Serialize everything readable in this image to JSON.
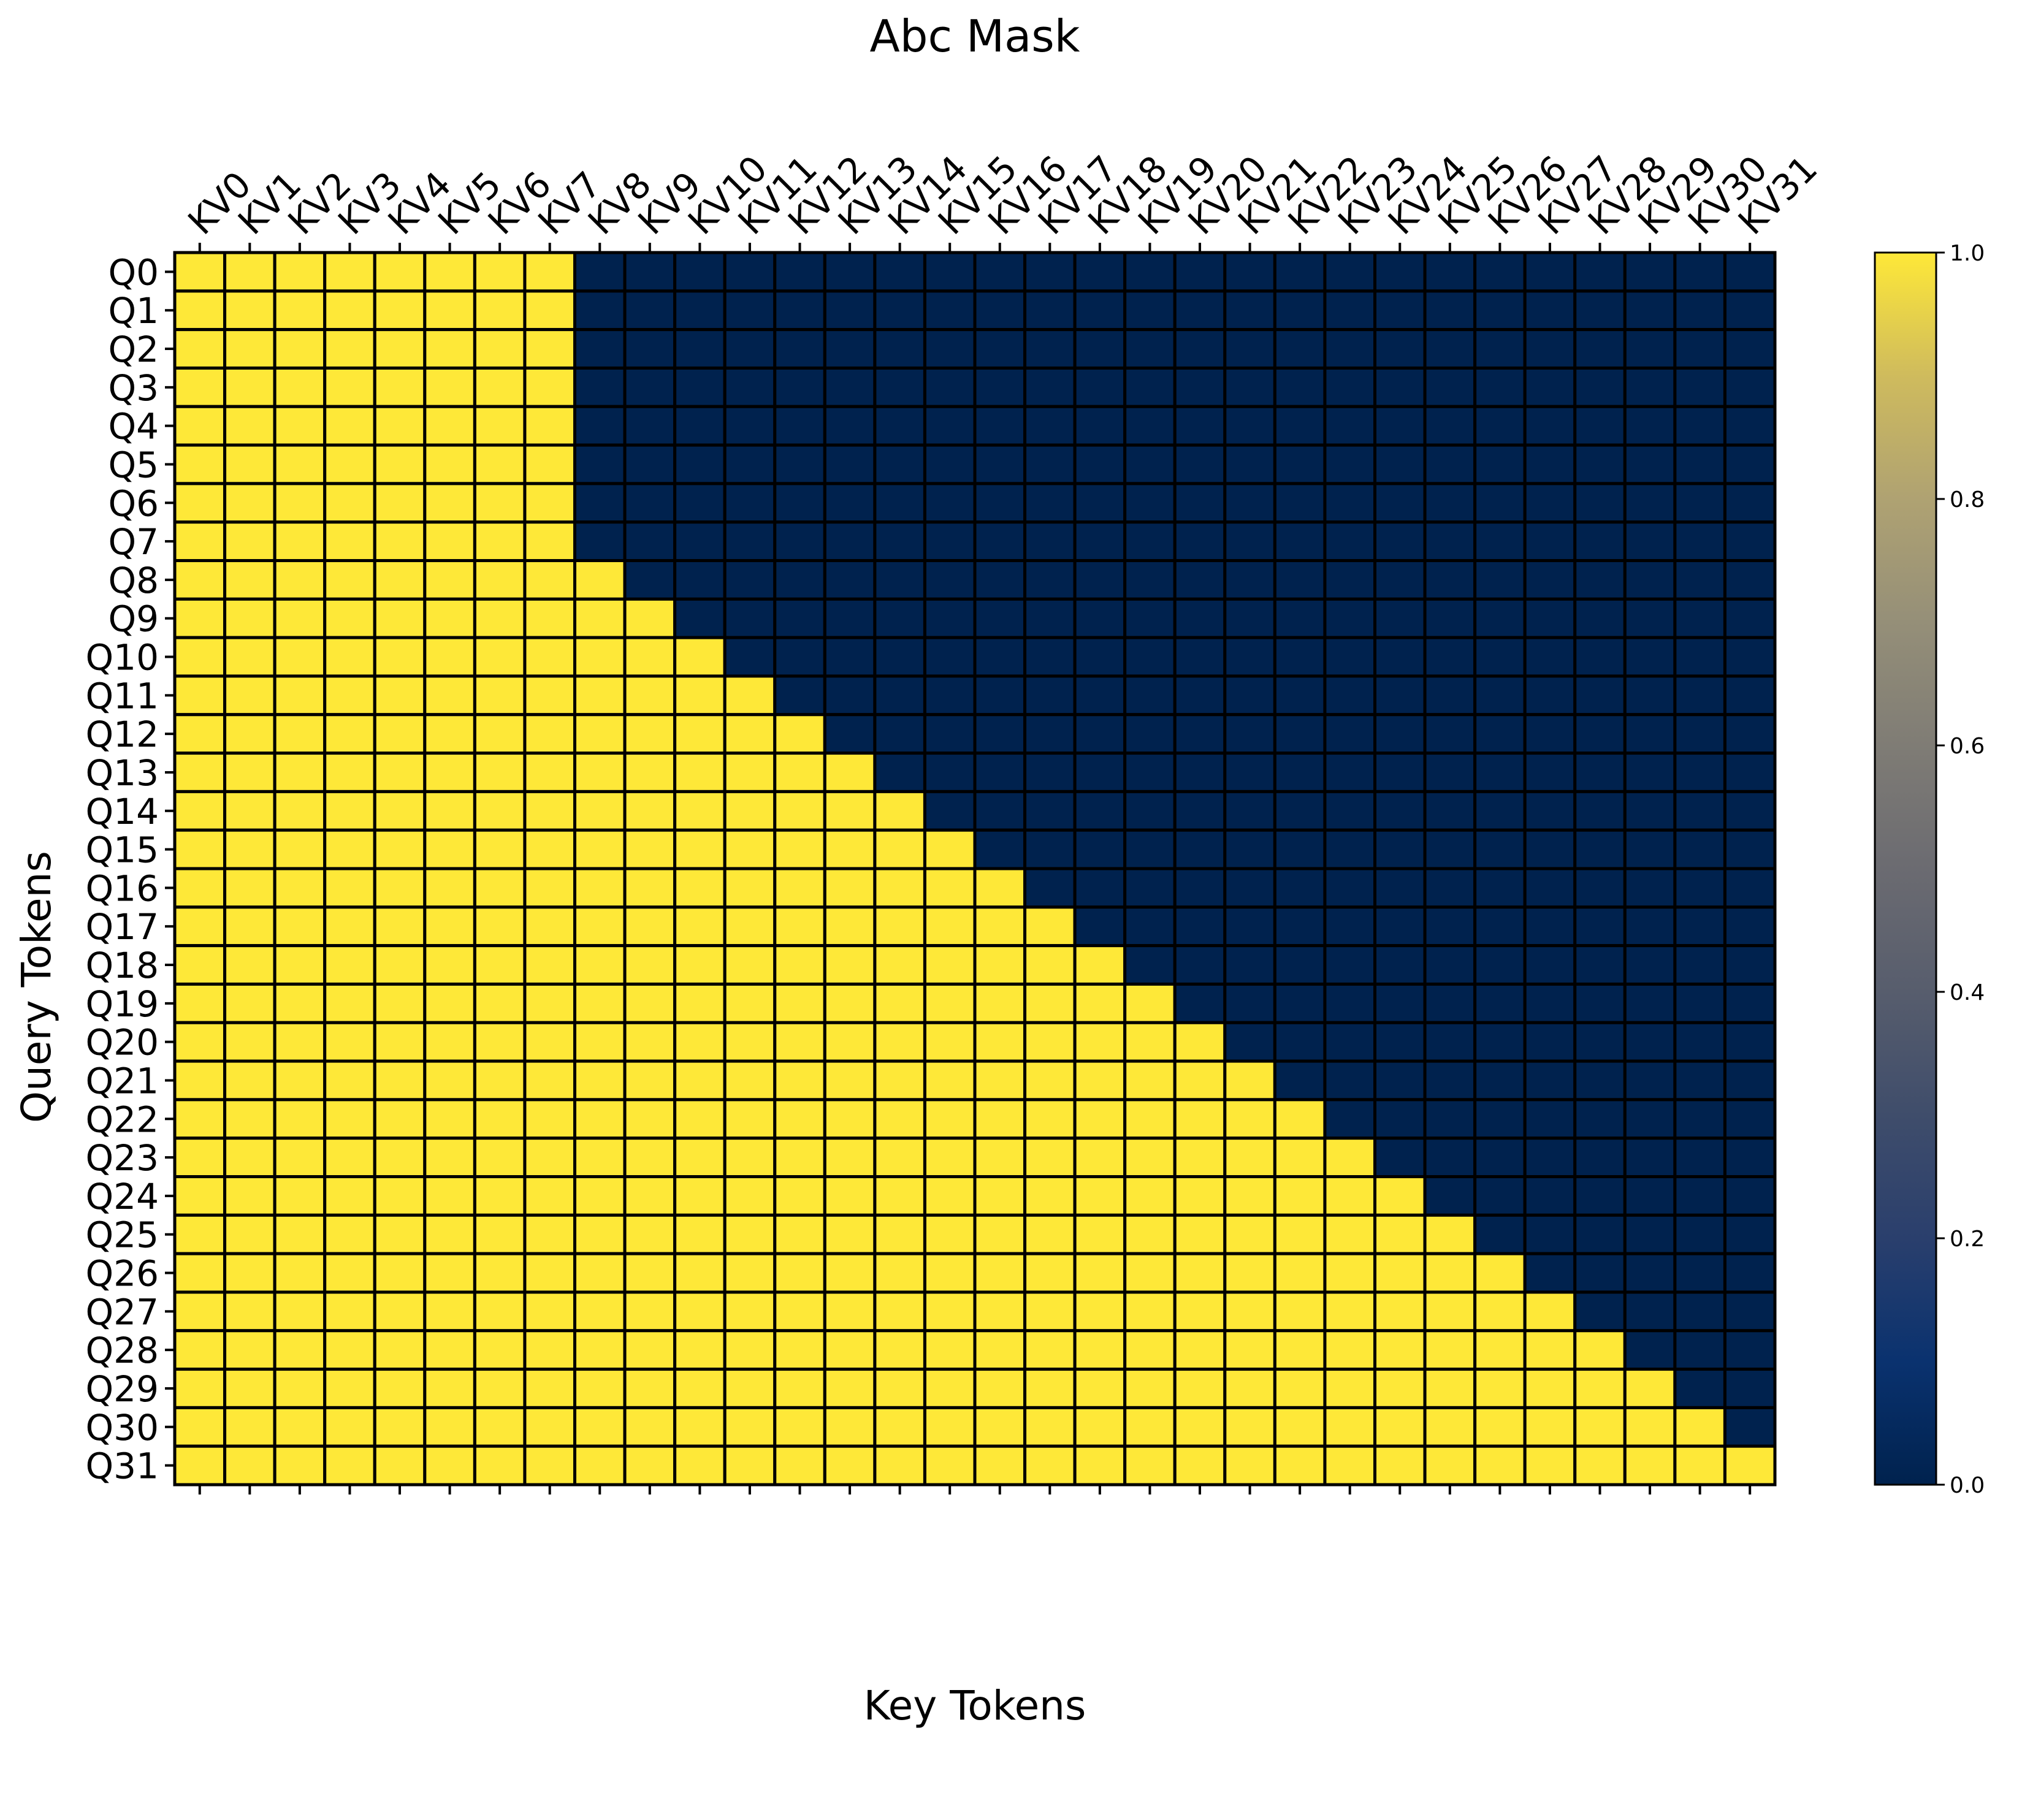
{
  "chart_data": {
    "type": "heatmap",
    "title": "Abc Mask",
    "xlabel": "Key Tokens",
    "ylabel": "Query Tokens",
    "x_tick_position": "top",
    "columns": [
      "KV0",
      "KV1",
      "KV2",
      "KV3",
      "KV4",
      "KV5",
      "KV6",
      "KV7",
      "KV8",
      "KV9",
      "KV10",
      "KV11",
      "KV12",
      "KV13",
      "KV14",
      "KV15",
      "KV16",
      "KV17",
      "KV18",
      "KV19",
      "KV20",
      "KV21",
      "KV22",
      "KV23",
      "KV24",
      "KV25",
      "KV26",
      "KV27",
      "KV28",
      "KV29",
      "KV30",
      "KV31"
    ],
    "rows": [
      "Q0",
      "Q1",
      "Q2",
      "Q3",
      "Q4",
      "Q5",
      "Q6",
      "Q7",
      "Q8",
      "Q9",
      "Q10",
      "Q11",
      "Q12",
      "Q13",
      "Q14",
      "Q15",
      "Q16",
      "Q17",
      "Q18",
      "Q19",
      "Q20",
      "Q21",
      "Q22",
      "Q23",
      "Q24",
      "Q25",
      "Q26",
      "Q27",
      "Q28",
      "Q29",
      "Q30",
      "Q31"
    ],
    "values": [
      [
        1,
        1,
        1,
        1,
        1,
        1,
        1,
        1,
        0,
        0,
        0,
        0,
        0,
        0,
        0,
        0,
        0,
        0,
        0,
        0,
        0,
        0,
        0,
        0,
        0,
        0,
        0,
        0,
        0,
        0,
        0,
        0
      ],
      [
        1,
        1,
        1,
        1,
        1,
        1,
        1,
        1,
        0,
        0,
        0,
        0,
        0,
        0,
        0,
        0,
        0,
        0,
        0,
        0,
        0,
        0,
        0,
        0,
        0,
        0,
        0,
        0,
        0,
        0,
        0,
        0
      ],
      [
        1,
        1,
        1,
        1,
        1,
        1,
        1,
        1,
        0,
        0,
        0,
        0,
        0,
        0,
        0,
        0,
        0,
        0,
        0,
        0,
        0,
        0,
        0,
        0,
        0,
        0,
        0,
        0,
        0,
        0,
        0,
        0
      ],
      [
        1,
        1,
        1,
        1,
        1,
        1,
        1,
        1,
        0,
        0,
        0,
        0,
        0,
        0,
        0,
        0,
        0,
        0,
        0,
        0,
        0,
        0,
        0,
        0,
        0,
        0,
        0,
        0,
        0,
        0,
        0,
        0
      ],
      [
        1,
        1,
        1,
        1,
        1,
        1,
        1,
        1,
        0,
        0,
        0,
        0,
        0,
        0,
        0,
        0,
        0,
        0,
        0,
        0,
        0,
        0,
        0,
        0,
        0,
        0,
        0,
        0,
        0,
        0,
        0,
        0
      ],
      [
        1,
        1,
        1,
        1,
        1,
        1,
        1,
        1,
        0,
        0,
        0,
        0,
        0,
        0,
        0,
        0,
        0,
        0,
        0,
        0,
        0,
        0,
        0,
        0,
        0,
        0,
        0,
        0,
        0,
        0,
        0,
        0
      ],
      [
        1,
        1,
        1,
        1,
        1,
        1,
        1,
        1,
        0,
        0,
        0,
        0,
        0,
        0,
        0,
        0,
        0,
        0,
        0,
        0,
        0,
        0,
        0,
        0,
        0,
        0,
        0,
        0,
        0,
        0,
        0,
        0
      ],
      [
        1,
        1,
        1,
        1,
        1,
        1,
        1,
        1,
        0,
        0,
        0,
        0,
        0,
        0,
        0,
        0,
        0,
        0,
        0,
        0,
        0,
        0,
        0,
        0,
        0,
        0,
        0,
        0,
        0,
        0,
        0,
        0
      ],
      [
        1,
        1,
        1,
        1,
        1,
        1,
        1,
        1,
        1,
        0,
        0,
        0,
        0,
        0,
        0,
        0,
        0,
        0,
        0,
        0,
        0,
        0,
        0,
        0,
        0,
        0,
        0,
        0,
        0,
        0,
        0,
        0
      ],
      [
        1,
        1,
        1,
        1,
        1,
        1,
        1,
        1,
        1,
        1,
        0,
        0,
        0,
        0,
        0,
        0,
        0,
        0,
        0,
        0,
        0,
        0,
        0,
        0,
        0,
        0,
        0,
        0,
        0,
        0,
        0,
        0
      ],
      [
        1,
        1,
        1,
        1,
        1,
        1,
        1,
        1,
        1,
        1,
        1,
        0,
        0,
        0,
        0,
        0,
        0,
        0,
        0,
        0,
        0,
        0,
        0,
        0,
        0,
        0,
        0,
        0,
        0,
        0,
        0,
        0
      ],
      [
        1,
        1,
        1,
        1,
        1,
        1,
        1,
        1,
        1,
        1,
        1,
        1,
        0,
        0,
        0,
        0,
        0,
        0,
        0,
        0,
        0,
        0,
        0,
        0,
        0,
        0,
        0,
        0,
        0,
        0,
        0,
        0
      ],
      [
        1,
        1,
        1,
        1,
        1,
        1,
        1,
        1,
        1,
        1,
        1,
        1,
        1,
        0,
        0,
        0,
        0,
        0,
        0,
        0,
        0,
        0,
        0,
        0,
        0,
        0,
        0,
        0,
        0,
        0,
        0,
        0
      ],
      [
        1,
        1,
        1,
        1,
        1,
        1,
        1,
        1,
        1,
        1,
        1,
        1,
        1,
        1,
        0,
        0,
        0,
        0,
        0,
        0,
        0,
        0,
        0,
        0,
        0,
        0,
        0,
        0,
        0,
        0,
        0,
        0
      ],
      [
        1,
        1,
        1,
        1,
        1,
        1,
        1,
        1,
        1,
        1,
        1,
        1,
        1,
        1,
        1,
        0,
        0,
        0,
        0,
        0,
        0,
        0,
        0,
        0,
        0,
        0,
        0,
        0,
        0,
        0,
        0,
        0
      ],
      [
        1,
        1,
        1,
        1,
        1,
        1,
        1,
        1,
        1,
        1,
        1,
        1,
        1,
        1,
        1,
        1,
        0,
        0,
        0,
        0,
        0,
        0,
        0,
        0,
        0,
        0,
        0,
        0,
        0,
        0,
        0,
        0
      ],
      [
        1,
        1,
        1,
        1,
        1,
        1,
        1,
        1,
        1,
        1,
        1,
        1,
        1,
        1,
        1,
        1,
        1,
        0,
        0,
        0,
        0,
        0,
        0,
        0,
        0,
        0,
        0,
        0,
        0,
        0,
        0,
        0
      ],
      [
        1,
        1,
        1,
        1,
        1,
        1,
        1,
        1,
        1,
        1,
        1,
        1,
        1,
        1,
        1,
        1,
        1,
        1,
        0,
        0,
        0,
        0,
        0,
        0,
        0,
        0,
        0,
        0,
        0,
        0,
        0,
        0
      ],
      [
        1,
        1,
        1,
        1,
        1,
        1,
        1,
        1,
        1,
        1,
        1,
        1,
        1,
        1,
        1,
        1,
        1,
        1,
        1,
        0,
        0,
        0,
        0,
        0,
        0,
        0,
        0,
        0,
        0,
        0,
        0,
        0
      ],
      [
        1,
        1,
        1,
        1,
        1,
        1,
        1,
        1,
        1,
        1,
        1,
        1,
        1,
        1,
        1,
        1,
        1,
        1,
        1,
        1,
        0,
        0,
        0,
        0,
        0,
        0,
        0,
        0,
        0,
        0,
        0,
        0
      ],
      [
        1,
        1,
        1,
        1,
        1,
        1,
        1,
        1,
        1,
        1,
        1,
        1,
        1,
        1,
        1,
        1,
        1,
        1,
        1,
        1,
        1,
        0,
        0,
        0,
        0,
        0,
        0,
        0,
        0,
        0,
        0,
        0
      ],
      [
        1,
        1,
        1,
        1,
        1,
        1,
        1,
        1,
        1,
        1,
        1,
        1,
        1,
        1,
        1,
        1,
        1,
        1,
        1,
        1,
        1,
        1,
        0,
        0,
        0,
        0,
        0,
        0,
        0,
        0,
        0,
        0
      ],
      [
        1,
        1,
        1,
        1,
        1,
        1,
        1,
        1,
        1,
        1,
        1,
        1,
        1,
        1,
        1,
        1,
        1,
        1,
        1,
        1,
        1,
        1,
        1,
        0,
        0,
        0,
        0,
        0,
        0,
        0,
        0,
        0
      ],
      [
        1,
        1,
        1,
        1,
        1,
        1,
        1,
        1,
        1,
        1,
        1,
        1,
        1,
        1,
        1,
        1,
        1,
        1,
        1,
        1,
        1,
        1,
        1,
        1,
        0,
        0,
        0,
        0,
        0,
        0,
        0,
        0
      ],
      [
        1,
        1,
        1,
        1,
        1,
        1,
        1,
        1,
        1,
        1,
        1,
        1,
        1,
        1,
        1,
        1,
        1,
        1,
        1,
        1,
        1,
        1,
        1,
        1,
        1,
        0,
        0,
        0,
        0,
        0,
        0,
        0
      ],
      [
        1,
        1,
        1,
        1,
        1,
        1,
        1,
        1,
        1,
        1,
        1,
        1,
        1,
        1,
        1,
        1,
        1,
        1,
        1,
        1,
        1,
        1,
        1,
        1,
        1,
        1,
        0,
        0,
        0,
        0,
        0,
        0
      ],
      [
        1,
        1,
        1,
        1,
        1,
        1,
        1,
        1,
        1,
        1,
        1,
        1,
        1,
        1,
        1,
        1,
        1,
        1,
        1,
        1,
        1,
        1,
        1,
        1,
        1,
        1,
        1,
        0,
        0,
        0,
        0,
        0
      ],
      [
        1,
        1,
        1,
        1,
        1,
        1,
        1,
        1,
        1,
        1,
        1,
        1,
        1,
        1,
        1,
        1,
        1,
        1,
        1,
        1,
        1,
        1,
        1,
        1,
        1,
        1,
        1,
        1,
        0,
        0,
        0,
        0
      ],
      [
        1,
        1,
        1,
        1,
        1,
        1,
        1,
        1,
        1,
        1,
        1,
        1,
        1,
        1,
        1,
        1,
        1,
        1,
        1,
        1,
        1,
        1,
        1,
        1,
        1,
        1,
        1,
        1,
        1,
        0,
        0,
        0
      ],
      [
        1,
        1,
        1,
        1,
        1,
        1,
        1,
        1,
        1,
        1,
        1,
        1,
        1,
        1,
        1,
        1,
        1,
        1,
        1,
        1,
        1,
        1,
        1,
        1,
        1,
        1,
        1,
        1,
        1,
        1,
        0,
        0
      ],
      [
        1,
        1,
        1,
        1,
        1,
        1,
        1,
        1,
        1,
        1,
        1,
        1,
        1,
        1,
        1,
        1,
        1,
        1,
        1,
        1,
        1,
        1,
        1,
        1,
        1,
        1,
        1,
        1,
        1,
        1,
        1,
        0
      ],
      [
        1,
        1,
        1,
        1,
        1,
        1,
        1,
        1,
        1,
        1,
        1,
        1,
        1,
        1,
        1,
        1,
        1,
        1,
        1,
        1,
        1,
        1,
        1,
        1,
        1,
        1,
        1,
        1,
        1,
        1,
        1,
        1
      ]
    ],
    "vmin": 0,
    "vmax": 1,
    "colormap": "cividis",
    "color_low": "#00224e",
    "color_high": "#fee838",
    "cell_border_color": "#000000",
    "colorbar": {
      "ticks": [
        0.0,
        0.2,
        0.4,
        0.6,
        0.8,
        1.0
      ],
      "tick_labels": [
        "0.0",
        "0.2",
        "0.4",
        "0.6",
        "0.8",
        "1.0"
      ]
    },
    "grid": false
  }
}
